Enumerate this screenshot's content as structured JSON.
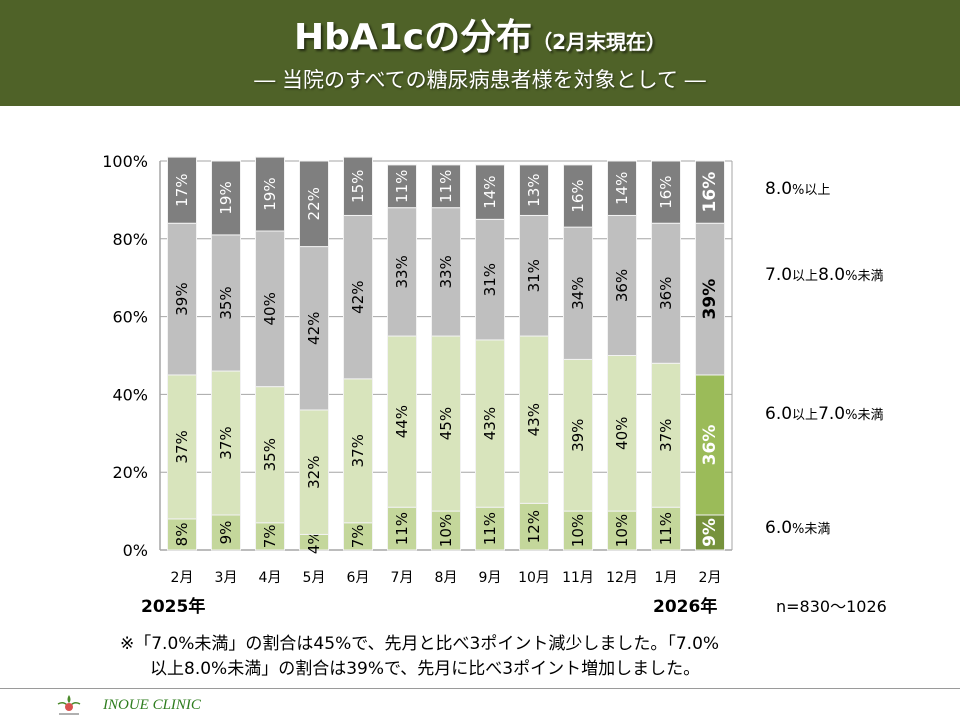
{
  "header": {
    "title": "HbA1cの分布",
    "title_suffix": "（2月末現在）",
    "subtitle": "―  当院のすべての糖尿病患者様を対象として  ―"
  },
  "chart_data": {
    "type": "bar",
    "stacked": true,
    "percent_stacked": true,
    "categories": [
      "2月",
      "3月",
      "4月",
      "5月",
      "6月",
      "7月",
      "8月",
      "9月",
      "10月",
      "11月",
      "12月",
      "1月",
      "2月"
    ],
    "year_labels": {
      "start": "2025年",
      "end": "2026年"
    },
    "ylim": [
      0,
      100
    ],
    "yticks": [
      "0%",
      "20%",
      "40%",
      "60%",
      "80%",
      "100%"
    ],
    "grid": true,
    "legend_position": "right",
    "series": [
      {
        "name": "6.0%未満",
        "legend_main": "6.0",
        "legend_sub": "%未満",
        "color": "#c4d79b",
        "highlight_color": "#76923c",
        "values": [
          8,
          9,
          7,
          4,
          7,
          11,
          10,
          11,
          12,
          10,
          10,
          11,
          9
        ]
      },
      {
        "name": "6.0以上7.0%未満",
        "legend_main": "6.0",
        "legend_mid": "以上",
        "legend_main2": "7.0",
        "legend_sub": "%未満",
        "color": "#d8e4bc",
        "highlight_color": "#9bbb59",
        "values": [
          37,
          37,
          35,
          32,
          37,
          44,
          45,
          43,
          43,
          39,
          40,
          37,
          36
        ]
      },
      {
        "name": "7.0以上8.0%未満",
        "legend_main": "7.0",
        "legend_mid": "以上",
        "legend_main2": "8.0",
        "legend_sub": "%未満",
        "color": "#bfbfbf",
        "highlight_color": "#bfbfbf",
        "values": [
          39,
          35,
          40,
          42,
          42,
          33,
          33,
          31,
          31,
          34,
          36,
          36,
          39
        ]
      },
      {
        "name": "8.0%以上",
        "legend_main": "8.0",
        "legend_sub": "%以上",
        "color": "#7f7f7f",
        "highlight_color": "#7f7f7f",
        "values": [
          17,
          19,
          19,
          22,
          15,
          11,
          11,
          14,
          13,
          16,
          14,
          16,
          16
        ]
      }
    ],
    "highlight_index": 12,
    "sample_size": "n=830～1026"
  },
  "note": {
    "line1": "※「7.0%未満」の割合は45%で、先月と比べ3ポイント減少しました。「7.0%",
    "line2": "以上8.0%未満」の割合は39%で、先月に比べ3ポイント増加しました。"
  },
  "footer": {
    "clinic_name": "INOUE CLINIC"
  }
}
